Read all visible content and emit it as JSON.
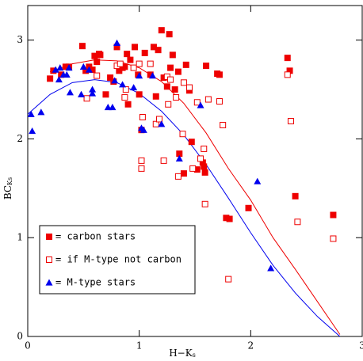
{
  "chart_data": {
    "type": "scatter",
    "xlabel": {
      "text": "H−K",
      "subscript": "s"
    },
    "ylabel": {
      "text": "BC",
      "subscript": "Ks"
    },
    "xlim": [
      0,
      3
    ],
    "ylim": [
      0,
      3.35
    ],
    "xticks": [
      0,
      1,
      2,
      3
    ],
    "yticks": [
      0,
      1,
      2,
      3
    ],
    "legend": "lower left",
    "series": [
      {
        "name": "= carbon stars",
        "color": "#ee0000",
        "marker": "filled-square",
        "x": [
          0.2,
          0.23,
          0.3,
          0.34,
          0.37,
          0.49,
          0.52,
          0.55,
          0.58,
          0.6,
          0.62,
          0.64,
          0.65,
          0.7,
          0.74,
          0.77,
          0.8,
          0.82,
          0.85,
          0.87,
          0.89,
          0.9,
          0.92,
          0.96,
          0.99,
          1.0,
          1.02,
          1.05,
          1.1,
          1.13,
          1.15,
          1.17,
          1.2,
          1.22,
          1.25,
          1.27,
          1.28,
          1.3,
          1.32,
          1.35,
          1.36,
          1.4,
          1.42,
          1.45,
          1.47,
          1.52,
          1.57,
          1.58,
          1.59,
          1.6,
          1.7,
          1.72,
          1.78,
          1.81,
          1.98,
          2.33,
          2.35,
          2.4,
          2.74
        ],
        "values": [
          2.61,
          2.69,
          2.65,
          2.73,
          2.73,
          2.94,
          2.69,
          2.73,
          2.7,
          2.84,
          2.78,
          2.86,
          2.85,
          2.45,
          2.62,
          2.58,
          2.93,
          2.69,
          2.72,
          2.73,
          2.86,
          2.35,
          2.8,
          2.93,
          2.65,
          2.45,
          2.09,
          2.87,
          2.65,
          2.93,
          2.43,
          2.9,
          3.1,
          2.62,
          2.53,
          3.06,
          2.72,
          2.85,
          2.5,
          2.68,
          1.85,
          1.65,
          2.75,
          2.49,
          1.97,
          1.69,
          1.76,
          1.72,
          1.66,
          2.74,
          2.66,
          2.65,
          1.2,
          1.19,
          1.3,
          2.82,
          2.69,
          1.42,
          1.23
        ]
      },
      {
        "name": "= if M-type not carbon",
        "color": "#ee0000",
        "marker": "open-square",
        "x": [
          0.53,
          0.62,
          0.8,
          0.83,
          0.87,
          0.88,
          0.95,
          1.0,
          1.02,
          1.02,
          1.03,
          1.1,
          1.15,
          1.18,
          1.22,
          1.25,
          1.26,
          1.28,
          1.33,
          1.35,
          1.39,
          1.4,
          1.45,
          1.48,
          1.52,
          1.55,
          1.58,
          1.59,
          1.62,
          1.72,
          1.75,
          1.8,
          2.33,
          2.36,
          2.42,
          2.74
        ],
        "values": [
          2.41,
          2.64,
          2.74,
          2.76,
          2.42,
          2.5,
          2.72,
          2.76,
          1.7,
          1.78,
          2.22,
          2.76,
          2.15,
          2.2,
          1.78,
          2.63,
          2.35,
          2.6,
          2.42,
          1.62,
          2.05,
          2.57,
          2.52,
          1.7,
          2.37,
          1.8,
          1.9,
          1.34,
          2.4,
          2.38,
          2.14,
          0.58,
          2.65,
          2.18,
          1.16,
          0.99
        ]
      },
      {
        "name": "= M-type stars",
        "color": "#0000ee",
        "marker": "triangle",
        "x": [
          0.03,
          0.04,
          0.12,
          0.25,
          0.28,
          0.29,
          0.32,
          0.35,
          0.37,
          0.38,
          0.48,
          0.5,
          0.55,
          0.58,
          0.58,
          0.72,
          0.76,
          0.78,
          0.8,
          0.85,
          0.95,
          1.0,
          1.02,
          1.04,
          1.12,
          1.2,
          1.36,
          1.55,
          2.06,
          2.18
        ],
        "values": [
          2.25,
          2.08,
          2.27,
          2.7,
          2.6,
          2.72,
          2.65,
          2.65,
          2.72,
          2.47,
          2.45,
          2.73,
          2.7,
          2.5,
          2.46,
          2.32,
          2.32,
          2.59,
          2.97,
          2.55,
          2.52,
          2.64,
          2.11,
          2.09,
          2.64,
          2.15,
          1.8,
          2.34,
          1.57,
          0.69
        ]
      }
    ],
    "curves": [
      {
        "color": "#ee0000",
        "x": [
          0.2,
          0.4,
          0.6,
          0.8,
          1.0,
          1.2,
          1.4,
          1.6,
          1.8,
          2.0,
          2.2,
          2.4,
          2.6,
          2.8
        ],
        "values": [
          2.68,
          2.76,
          2.8,
          2.79,
          2.72,
          2.58,
          2.36,
          2.06,
          1.7,
          1.38,
          1.0,
          0.68,
          0.35,
          0.02
        ]
      },
      {
        "color": "#0000ee",
        "x": [
          0,
          0.2,
          0.4,
          0.6,
          0.8,
          1.0,
          1.2,
          1.4,
          1.6,
          1.8,
          2.0,
          2.2,
          2.4,
          2.6,
          2.8
        ],
        "values": [
          2.25,
          2.45,
          2.57,
          2.6,
          2.57,
          2.46,
          2.28,
          2.04,
          1.74,
          1.4,
          1.05,
          0.72,
          0.44,
          0.2,
          0.0
        ]
      }
    ]
  }
}
